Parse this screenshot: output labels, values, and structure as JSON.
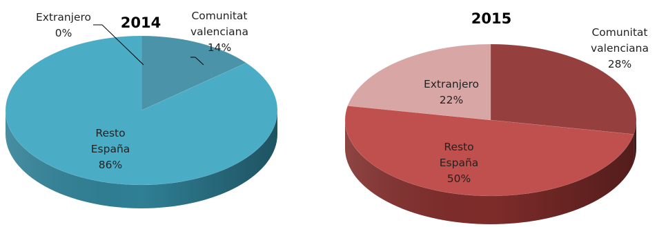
{
  "chart_data": [
    {
      "type": "pie",
      "title": "2014",
      "categories": [
        "Comunitat valenciana",
        "Resto España",
        "Extranjero"
      ],
      "values": [
        14,
        86,
        0
      ],
      "value_labels": [
        "14%",
        "86%",
        "0%"
      ],
      "label_lines": [
        [
          "Comunitat",
          "valenciana",
          "14%"
        ],
        [
          "Resto",
          "España",
          "86%"
        ],
        [
          "Extranjero",
          "0%"
        ]
      ],
      "colors": {
        "top": [
          "#4A93A8",
          "#4BACC6",
          "#3B8BA0"
        ],
        "side": [
          "#2E6E7F",
          "#2F7F95",
          "#2A6B7C"
        ]
      },
      "style": "3d"
    },
    {
      "type": "pie",
      "title": "2015",
      "categories": [
        "Comunitat valenciana",
        "Resto España",
        "Extranjero"
      ],
      "values": [
        28,
        50,
        22
      ],
      "value_labels": [
        "28%",
        "50%",
        "22%"
      ],
      "label_lines": [
        [
          "Comunitat",
          "valenciana",
          "28%"
        ],
        [
          "Resto",
          "España",
          "50%"
        ],
        [
          "Extranjero",
          "22%"
        ]
      ],
      "colors": {
        "top": [
          "#953F3E",
          "#C0504D",
          "#D8A6A5"
        ],
        "side": [
          "#6C2B2A",
          "#7E2C2A",
          "#A87F7E"
        ]
      },
      "style": "3d"
    }
  ]
}
